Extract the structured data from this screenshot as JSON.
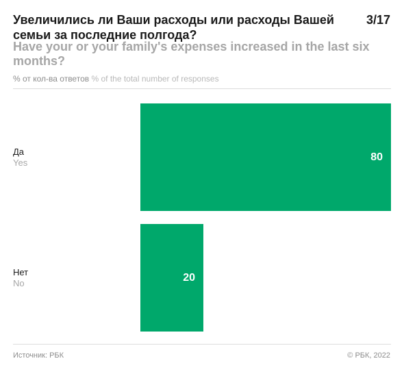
{
  "header": {
    "title_ru": "Увеличились ли Ваши расходы или расходы Вашей семьи за последние полгода?",
    "title_en": "Have your or your family's expenses increased in the last six months?",
    "page": "3/17"
  },
  "units": {
    "ru": "% от кол-ва ответов",
    "en": "% of the total number of responses"
  },
  "colors": {
    "bar": "#00a86b"
  },
  "chart_data": {
    "type": "bar",
    "orientation": "horizontal",
    "categories": [
      {
        "ru": "Да",
        "en": "Yes"
      },
      {
        "ru": "Нет",
        "en": "No"
      }
    ],
    "values": [
      80,
      20
    ],
    "xlim": [
      0,
      80
    ],
    "grid": false,
    "legend": "none"
  },
  "footer": {
    "source": "Источник: РБК",
    "copyright": "© РБК, 2022"
  }
}
